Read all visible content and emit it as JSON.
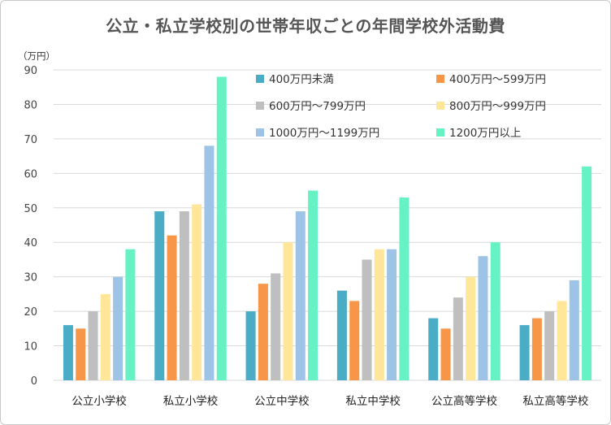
{
  "chart_data": {
    "type": "bar",
    "title": "公立・私立学校別の世帯年収ごとの年間学校外活動費",
    "unit_label": "（万円）",
    "ylim": [
      0,
      90
    ],
    "yticks": [
      0,
      10,
      20,
      30,
      40,
      50,
      60,
      70,
      80,
      90
    ],
    "grid": true,
    "legend_position": "top-right",
    "categories": [
      "公立小学校",
      "私立小学校",
      "公立中学校",
      "私立中学校",
      "公立高等学校",
      "私立高等学校"
    ],
    "series": [
      {
        "name": "400万円未満",
        "color": "#4BACC6",
        "values": [
          16,
          49,
          20,
          26,
          18,
          16
        ]
      },
      {
        "name": "400万円～599万円",
        "color": "#F79646",
        "values": [
          15,
          42,
          28,
          23,
          15,
          18
        ]
      },
      {
        "name": "600万円～799万円",
        "color": "#BFBFBF",
        "values": [
          20,
          49,
          31,
          35,
          24,
          20
        ]
      },
      {
        "name": "800万円～999万円",
        "color": "#FFE699",
        "values": [
          25,
          51,
          40,
          38,
          30,
          23
        ]
      },
      {
        "name": "1000万円～1199万円",
        "color": "#9DC3E6",
        "values": [
          30,
          68,
          49,
          38,
          36,
          29
        ]
      },
      {
        "name": "1200万円以上",
        "color": "#66F2C4",
        "values": [
          38,
          88,
          55,
          53,
          40,
          62
        ]
      }
    ]
  }
}
